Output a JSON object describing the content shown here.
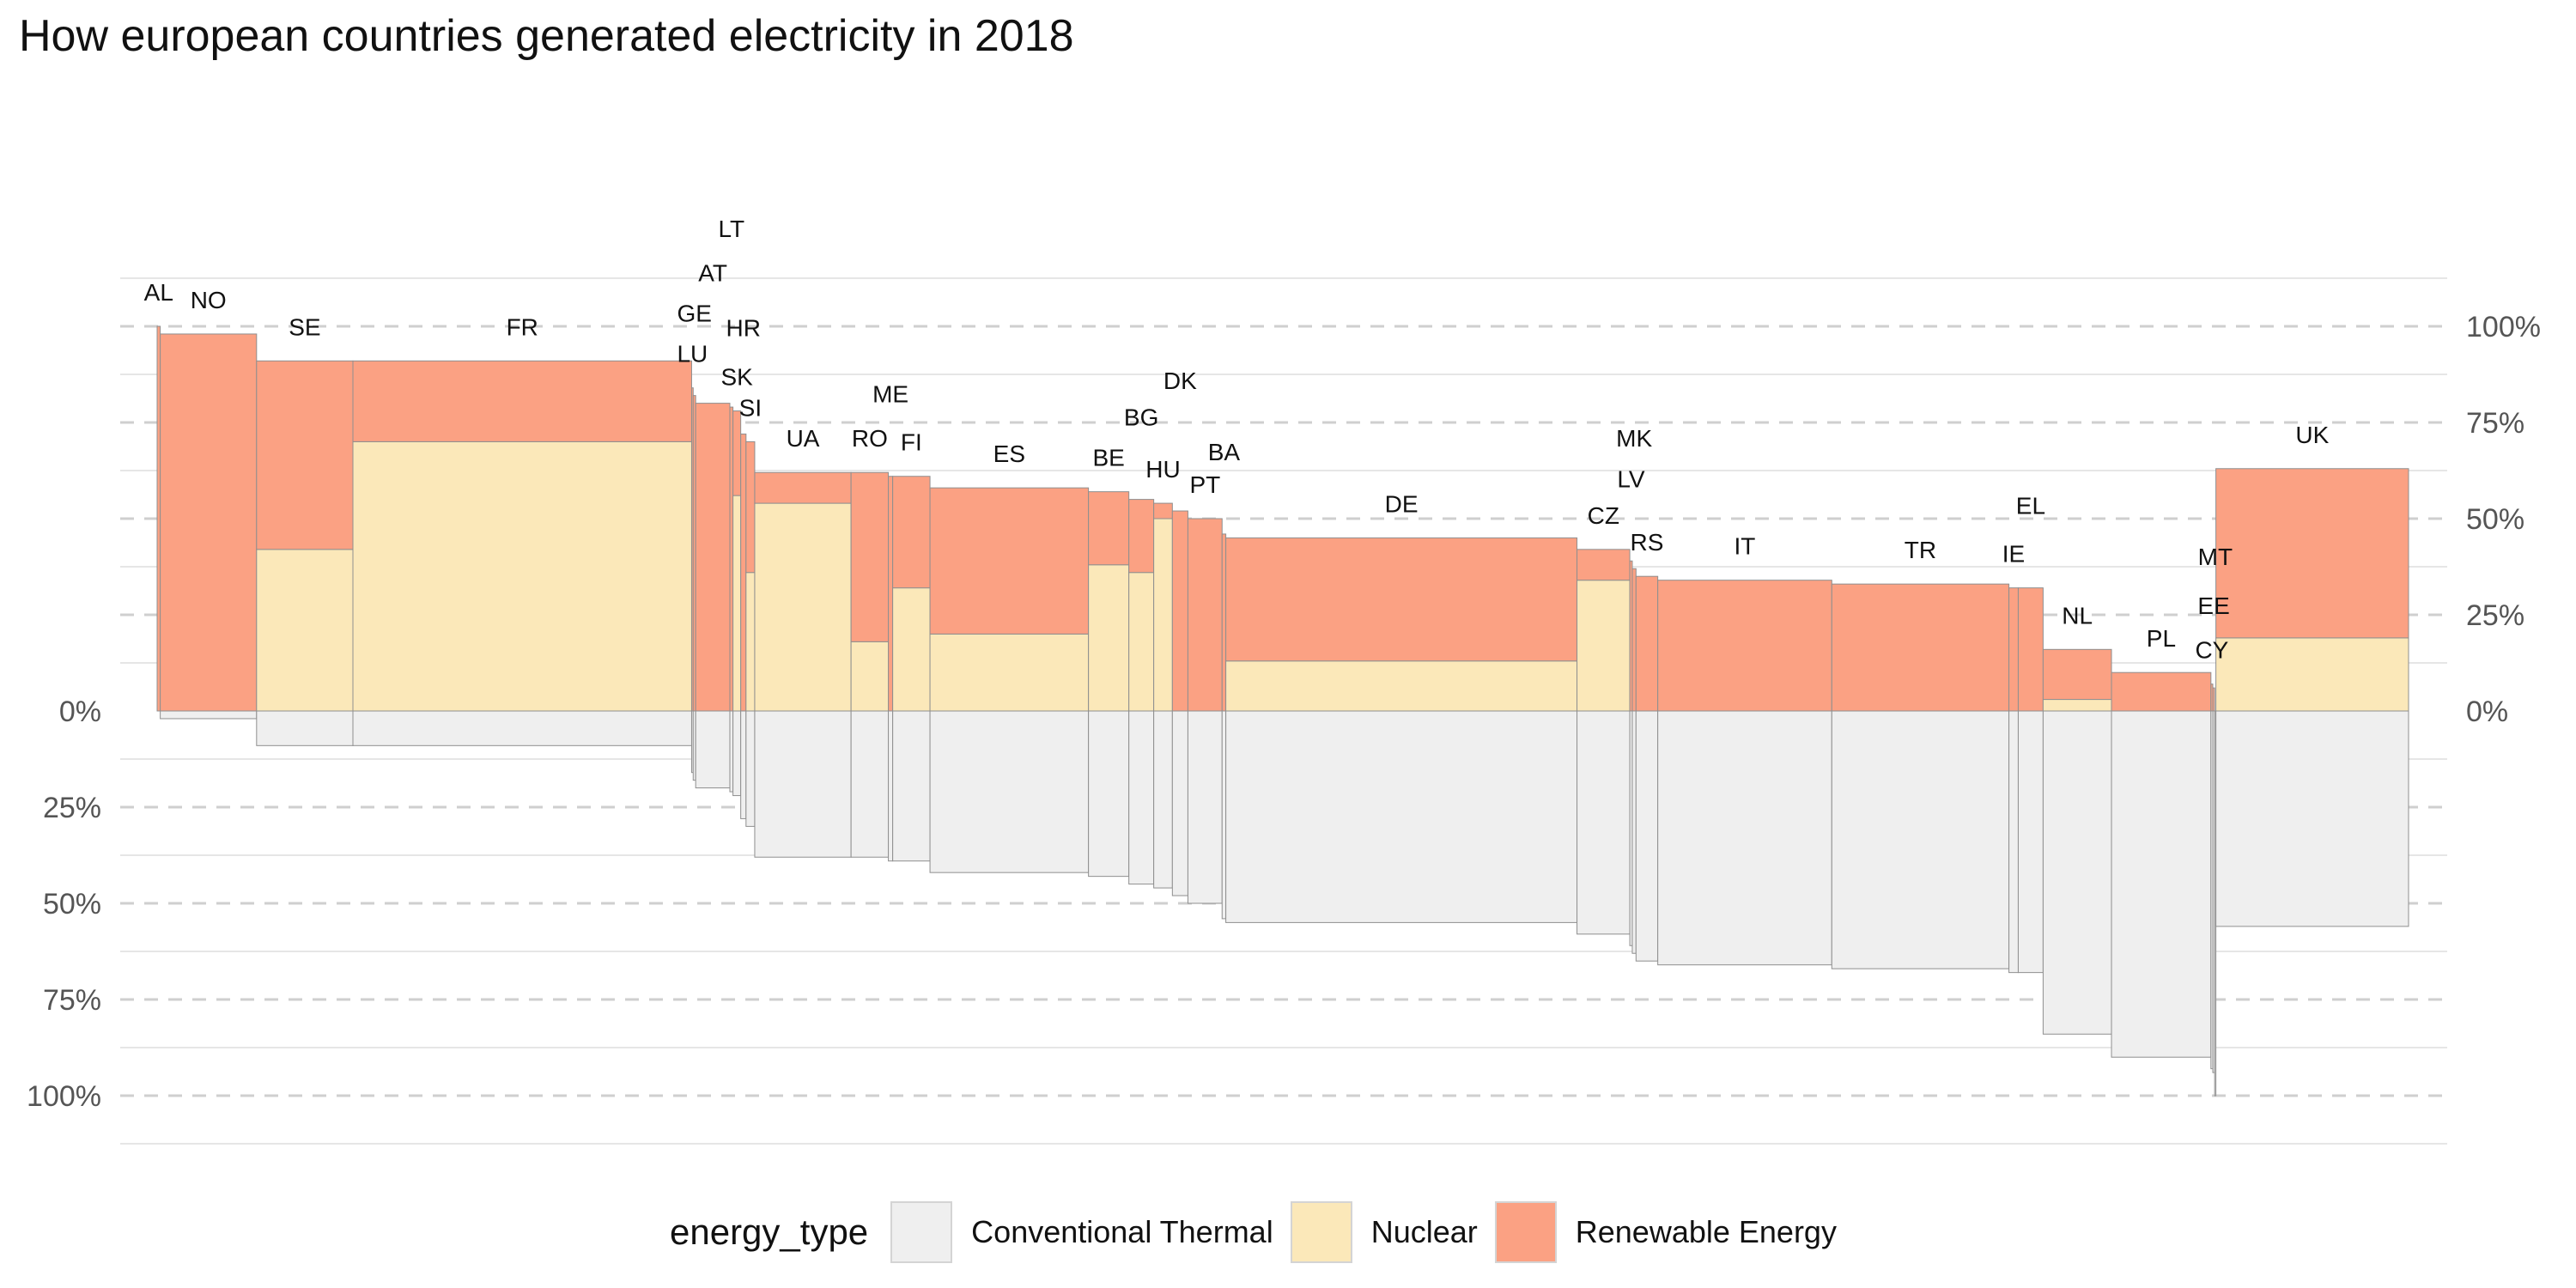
{
  "chart_data": {
    "type": "bar",
    "title": "How european countries generated electricity in 2018",
    "legend_title": "energy_type",
    "legend_position": "bottom",
    "grid": true,
    "colors": {
      "Conventional Thermal": "#efefef",
      "Nuclear": "#fbe8b9",
      "Renewable Energy": "#fba183"
    },
    "legend": [
      {
        "label": "Conventional Thermal",
        "color": "#efefef"
      },
      {
        "label": "Nuclear",
        "color": "#fbe8b9"
      },
      {
        "label": "Renewable Energy",
        "color": "#fba183"
      }
    ],
    "y_ticks_left": [
      "0%",
      "25%",
      "50%",
      "75%",
      "100%"
    ],
    "y_ticks_right": [
      "100%",
      "75%",
      "50%",
      "25%",
      "0%"
    ],
    "ylim_up": [
      0,
      100
    ],
    "ylim_down": [
      0,
      100
    ],
    "series_names": [
      "Conventional Thermal",
      "Nuclear",
      "Renewable Energy"
    ],
    "countries": [
      {
        "code": "AL",
        "total_twh": 1,
        "renewable": 100,
        "nuclear": 0,
        "thermal": 0
      },
      {
        "code": "NO",
        "total_twh": 31,
        "renewable": 98,
        "nuclear": 0,
        "thermal": 2
      },
      {
        "code": "SE",
        "total_twh": 31,
        "renewable": 49,
        "nuclear": 42,
        "thermal": 9
      },
      {
        "code": "FR",
        "total_twh": 109,
        "renewable": 21,
        "nuclear": 70,
        "thermal": 9
      },
      {
        "code": "LU",
        "total_twh": 0.5,
        "renewable": 84,
        "nuclear": 0,
        "thermal": 16
      },
      {
        "code": "GE",
        "total_twh": 0.8,
        "renewable": 82,
        "nuclear": 0,
        "thermal": 18
      },
      {
        "code": "AT",
        "total_twh": 11,
        "renewable": 80,
        "nuclear": 0,
        "thermal": 20
      },
      {
        "code": "LT",
        "total_twh": 1,
        "renewable": 79,
        "nuclear": 0,
        "thermal": 21
      },
      {
        "code": "SK",
        "total_twh": 2.5,
        "renewable": 22,
        "nuclear": 56,
        "thermal": 22
      },
      {
        "code": "HR",
        "total_twh": 1.7,
        "renewable": 72,
        "nuclear": 0,
        "thermal": 28
      },
      {
        "code": "SI",
        "total_twh": 2.8,
        "renewable": 34,
        "nuclear": 36,
        "thermal": 30
      },
      {
        "code": "UA",
        "total_twh": 31,
        "renewable": 8,
        "nuclear": 54,
        "thermal": 38
      },
      {
        "code": "RO",
        "total_twh": 12,
        "renewable": 44,
        "nuclear": 18,
        "thermal": 38
      },
      {
        "code": "ME",
        "total_twh": 1.4,
        "renewable": 61,
        "nuclear": 0,
        "thermal": 39
      },
      {
        "code": "FI",
        "total_twh": 12,
        "renewable": 29,
        "nuclear": 32,
        "thermal": 39
      },
      {
        "code": "ES",
        "total_twh": 51,
        "renewable": 38,
        "nuclear": 20,
        "thermal": 42
      },
      {
        "code": "BE",
        "total_twh": 13,
        "renewable": 19,
        "nuclear": 38,
        "thermal": 43
      },
      {
        "code": "BG",
        "total_twh": 8,
        "renewable": 19,
        "nuclear": 36,
        "thermal": 45
      },
      {
        "code": "HU",
        "total_twh": 6,
        "renewable": 4,
        "nuclear": 50,
        "thermal": 46
      },
      {
        "code": "DK",
        "total_twh": 5,
        "renewable": 52,
        "nuclear": 0,
        "thermal": 48
      },
      {
        "code": "PT",
        "total_twh": 11,
        "renewable": 50,
        "nuclear": 0,
        "thermal": 50
      },
      {
        "code": "BA",
        "total_twh": 1.2,
        "renewable": 46,
        "nuclear": 0,
        "thermal": 54
      },
      {
        "code": "DE",
        "total_twh": 113,
        "renewable": 32,
        "nuclear": 13,
        "thermal": 55
      },
      {
        "code": "CZ",
        "total_twh": 17,
        "renewable": 8,
        "nuclear": 34,
        "thermal": 58
      },
      {
        "code": "LV",
        "total_twh": 0.8,
        "renewable": 39,
        "nuclear": 0,
        "thermal": 61
      },
      {
        "code": "MK",
        "total_twh": 1.2,
        "renewable": 37,
        "nuclear": 0,
        "thermal": 63
      },
      {
        "code": "RS",
        "total_twh": 7,
        "renewable": 35,
        "nuclear": 0,
        "thermal": 65
      },
      {
        "code": "IT",
        "total_twh": 56,
        "renewable": 34,
        "nuclear": 0,
        "thermal": 66
      },
      {
        "code": "TR",
        "total_twh": 57,
        "renewable": 33,
        "nuclear": 0,
        "thermal": 67
      },
      {
        "code": "IE",
        "total_twh": 3,
        "renewable": 32,
        "nuclear": 0,
        "thermal": 68
      },
      {
        "code": "EL",
        "total_twh": 8,
        "renewable": 32,
        "nuclear": 0,
        "thermal": 68
      },
      {
        "code": "NL",
        "total_twh": 22,
        "renewable": 13,
        "nuclear": 3,
        "thermal": 84
      },
      {
        "code": "PL",
        "total_twh": 32,
        "renewable": 10,
        "nuclear": 0,
        "thermal": 90
      },
      {
        "code": "CY",
        "total_twh": 0.6,
        "renewable": 7,
        "nuclear": 0,
        "thermal": 93
      },
      {
        "code": "EE",
        "total_twh": 0.6,
        "renewable": 6,
        "nuclear": 0,
        "thermal": 94
      },
      {
        "code": "MT",
        "total_twh": 0.4,
        "renewable": 0,
        "nuclear": 0,
        "thermal": 100
      },
      {
        "code": "UK",
        "total_twh": 62,
        "renewable": 44,
        "nuclear": 19,
        "thermal": 56
      }
    ]
  }
}
